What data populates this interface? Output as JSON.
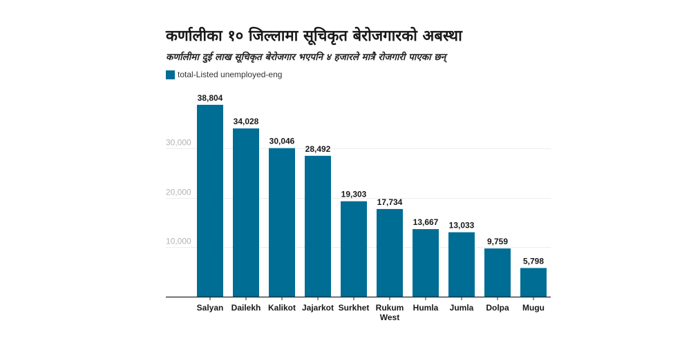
{
  "chart_data": {
    "type": "bar",
    "title": "कर्णालीका १० जिल्लामा सूचिकृत बेरोजगारको अबस्था",
    "subtitle": "कर्णालीमा दुई लाख सूचिकृत बेरोजगार भएपनि ४ हजारले मात्रै रोजगारी पाएका छन्",
    "legend": [
      {
        "name": "total-Listed unemployed-eng",
        "color": "#006d95"
      }
    ],
    "legend_position": "top-left",
    "xlabel": "",
    "ylabel": "",
    "ylim": [
      0,
      40000
    ],
    "grid": true,
    "yticks": [
      10000,
      20000,
      30000
    ],
    "ytick_labels": [
      "10,000",
      "20,000",
      "30,000"
    ],
    "categories": [
      [
        "Salyan"
      ],
      [
        "Dailekh"
      ],
      [
        "Kalikot"
      ],
      [
        "Jajarkot"
      ],
      [
        "Surkhet"
      ],
      [
        "Rukum",
        "West"
      ],
      [
        "Humla"
      ],
      [
        "Jumla"
      ],
      [
        "Dolpa"
      ],
      [
        "Mugu"
      ]
    ],
    "series": [
      {
        "name": "total-Listed unemployed-eng",
        "color": "#006d95",
        "values": [
          38804,
          34028,
          30046,
          28492,
          19303,
          17734,
          13667,
          13033,
          9759,
          5798
        ],
        "labels": [
          "38,804",
          "34,028",
          "30,046",
          "28,492",
          "19,303",
          "17,734",
          "13,667",
          "13,033",
          "9,759",
          "5,798"
        ]
      }
    ]
  }
}
